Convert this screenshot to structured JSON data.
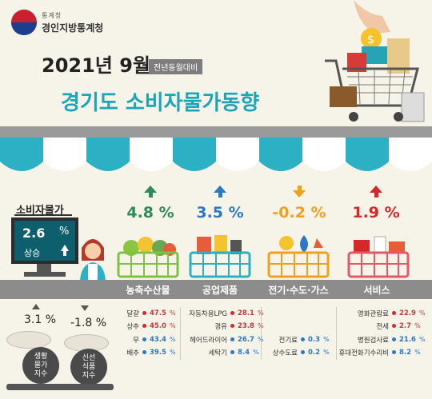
{
  "header": {
    "org_sub": "통계청",
    "org_main": "경인지방통계청",
    "year_month": "2021년 9월",
    "badge": "전년동월대비",
    "title": "경기도 소비자물가동향"
  },
  "summary": {
    "label": "소비자물가",
    "value": "2.6",
    "unit": "%",
    "status": "상승"
  },
  "categories": [
    {
      "name": "농축수산물",
      "value": "4.8 %",
      "direction": "up",
      "color": "#2e8b5a"
    },
    {
      "name": "공업제품",
      "value": "3.5 %",
      "direction": "up",
      "color": "#2a78c6"
    },
    {
      "name": "전기·수도·가스",
      "value": "-0.2 %",
      "direction": "down",
      "color": "#f0a020"
    },
    {
      "name": "서비스",
      "value": "1.9 %",
      "direction": "up",
      "color": "#d62828"
    }
  ],
  "indices": [
    {
      "value": "3.1 %",
      "direction": "up",
      "label_lines": [
        "생활",
        "물가",
        "지수"
      ]
    },
    {
      "value": "-1.8 %",
      "direction": "down",
      "label_lines": [
        "신선",
        "식품",
        "지수"
      ]
    }
  ],
  "items": {
    "agri": [
      {
        "name": "달걀",
        "value": "47.5",
        "unit": "%",
        "dir": "up"
      },
      {
        "name": "상추",
        "value": "45.0",
        "unit": "%",
        "dir": "up"
      },
      {
        "name": "무",
        "value": "43.4",
        "unit": "%",
        "dir": "down"
      },
      {
        "name": "배추",
        "value": "39.5",
        "unit": "%",
        "dir": "down"
      }
    ],
    "industrial": [
      {
        "name": "자동차용LPG",
        "value": "28.1",
        "unit": "%",
        "dir": "up"
      },
      {
        "name": "경유",
        "value": "23.8",
        "unit": "%",
        "dir": "up"
      },
      {
        "name": "헤어드라이어",
        "value": "26.7",
        "unit": "%",
        "dir": "down"
      },
      {
        "name": "세탁기",
        "value": "8.4",
        "unit": "%",
        "dir": "down"
      }
    ],
    "utilities": [
      {
        "name": "전기료",
        "value": "0.3",
        "unit": "%",
        "dir": "down"
      },
      {
        "name": "상수도료",
        "value": "0.2",
        "unit": "%",
        "dir": "down"
      }
    ],
    "services": [
      {
        "name": "영화관람료",
        "value": "22.9",
        "unit": "%",
        "dir": "up"
      },
      {
        "name": "전세",
        "value": "2.7",
        "unit": "%",
        "dir": "up"
      },
      {
        "name": "병원검사료",
        "value": "21.6",
        "unit": "%",
        "dir": "down"
      },
      {
        "name": "휴대전화기수리비",
        "value": "8.2",
        "unit": "%",
        "dir": "down"
      }
    ]
  }
}
